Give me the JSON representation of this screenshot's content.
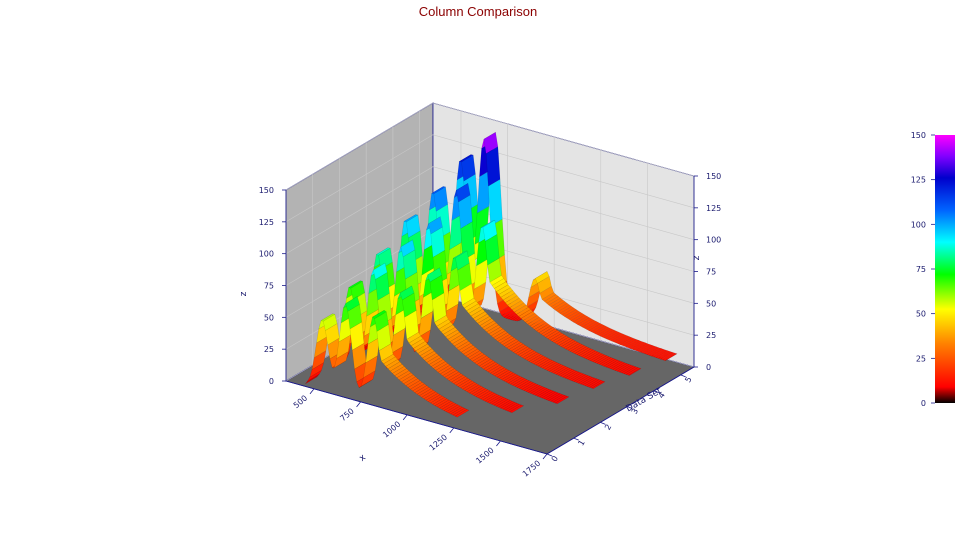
{
  "chart_data": {
    "type": "surface-3d",
    "title": "Column Comparison",
    "xlabel": "x",
    "ylabel": "Data Set",
    "zlabel": "z",
    "x_ticks": [
      "500",
      "750",
      "1000",
      "1250",
      "1500",
      "1750"
    ],
    "y_ticks": [
      "0",
      "1",
      "2",
      "3",
      "4",
      "5"
    ],
    "z_ticks": [
      "0",
      "25",
      "50",
      "75",
      "100",
      "125",
      "150"
    ],
    "colorbar_ticks": [
      "0",
      "25",
      "50",
      "75",
      "100",
      "125",
      "150"
    ],
    "xlim": [
      350,
      1750
    ],
    "ylim": [
      0,
      5.5
    ],
    "zlim": [
      0,
      150
    ],
    "colormap": [
      "#000000",
      "#ff0000",
      "#ff8000",
      "#ffff00",
      "#00ff00",
      "#00ffff",
      "#0064ff",
      "#0000cc",
      "#8000ff",
      "#ff00ff"
    ],
    "series": [
      {
        "data_set": 0,
        "peaks": [
          {
            "x": 575,
            "z": 60
          },
          {
            "x": 700,
            "z": 78
          },
          {
            "x": 850,
            "z": 74
          }
        ],
        "tail_x": 1300,
        "baseline": 6
      },
      {
        "data_set": 1,
        "peaks": [
          {
            "x": 580,
            "z": 74
          },
          {
            "x": 705,
            "z": 92
          },
          {
            "x": 850,
            "z": 80
          }
        ],
        "tail_x": 1450,
        "baseline": 6
      },
      {
        "data_set": 2,
        "peaks": [
          {
            "x": 585,
            "z": 88
          },
          {
            "x": 710,
            "z": 98
          },
          {
            "x": 855,
            "z": 82
          }
        ],
        "tail_x": 1550,
        "baseline": 6
      },
      {
        "data_set": 3,
        "peaks": [
          {
            "x": 590,
            "z": 102
          },
          {
            "x": 715,
            "z": 104
          },
          {
            "x": 855,
            "z": 84
          }
        ],
        "tail_x": 1600,
        "baseline": 8
      },
      {
        "data_set": 4,
        "peaks": [
          {
            "x": 595,
            "z": 112
          },
          {
            "x": 720,
            "z": 118
          },
          {
            "x": 860,
            "z": 96
          }
        ],
        "tail_x": 1650,
        "baseline": 8
      },
      {
        "data_set": 5,
        "peaks": [
          {
            "x": 600,
            "z": 125
          },
          {
            "x": 725,
            "z": 146
          },
          {
            "x": 1000,
            "z": 48
          }
        ],
        "tail_x": 1700,
        "baseline": 10
      }
    ],
    "grid": true,
    "floor_color": "#666666",
    "back_wall_color": "#e4e4e4",
    "side_wall_color": "#b3b3b3",
    "legend": "colorbar-right"
  }
}
